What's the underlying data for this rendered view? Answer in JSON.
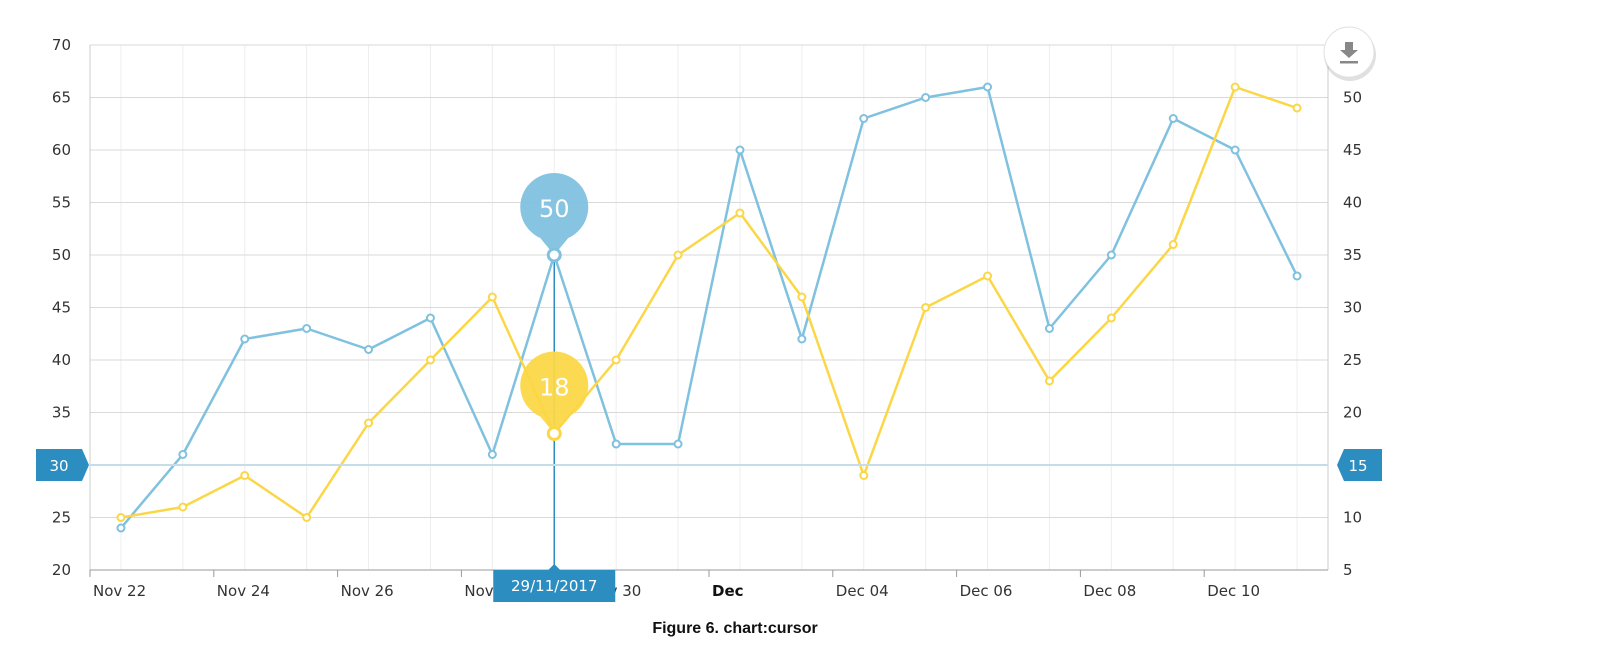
{
  "caption": "Figure 6. chart:cursor",
  "export_button": {
    "icon": "download-icon"
  },
  "colors": {
    "series1": "#7fc1df",
    "series2": "#fbd747",
    "cursor": "#2b8dc0",
    "grid": "#d9d9d9",
    "minor_grid": "#eeeeee"
  },
  "chart_data": {
    "type": "line",
    "x": [
      "2017-11-22",
      "2017-11-23",
      "2017-11-24",
      "2017-11-25",
      "2017-11-26",
      "2017-11-27",
      "2017-11-28",
      "2017-11-29",
      "2017-11-30",
      "2017-12-01",
      "2017-12-02",
      "2017-12-03",
      "2017-12-04",
      "2017-12-05",
      "2017-12-06",
      "2017-12-07",
      "2017-12-08",
      "2017-12-09",
      "2017-12-10",
      "2017-12-11"
    ],
    "x_ticks": [
      {
        "date": "2017-11-22",
        "label": "Nov 22",
        "bold": false
      },
      {
        "date": "2017-11-24",
        "label": "Nov 24",
        "bold": false
      },
      {
        "date": "2017-11-26",
        "label": "Nov 26",
        "bold": false
      },
      {
        "date": "2017-11-28",
        "label": "Nov 28",
        "bold": false
      },
      {
        "date": "2017-11-30",
        "label": "Nov 30",
        "bold": false
      },
      {
        "date": "2017-12-02",
        "label": "Dec",
        "bold": true
      },
      {
        "date": "2017-12-04",
        "label": "Dec 04",
        "bold": false
      },
      {
        "date": "2017-12-06",
        "label": "Dec 06",
        "bold": false
      },
      {
        "date": "2017-12-08",
        "label": "Dec 08",
        "bold": false
      },
      {
        "date": "2017-12-10",
        "label": "Dec 10",
        "bold": false
      }
    ],
    "series": [
      {
        "axis": "left",
        "color": "#7fc1df",
        "values": [
          24,
          31,
          42,
          43,
          41,
          44,
          31,
          50,
          32,
          32,
          60,
          42,
          63,
          65,
          66,
          43,
          50,
          63,
          60,
          48
        ]
      },
      {
        "axis": "right",
        "color": "#fbd747",
        "values": [
          10,
          11,
          14,
          10,
          19,
          25,
          31,
          18,
          25,
          35,
          39,
          31,
          14,
          30,
          33,
          23,
          29,
          36,
          51,
          49
        ]
      }
    ],
    "left_axis": {
      "min": 20,
      "max": 70,
      "step": 5
    },
    "right_axis": {
      "min": 5,
      "max": 50,
      "step": 5,
      "top": 55
    },
    "grid": true,
    "cursor": {
      "date_label": "29/11/2017",
      "index": 7,
      "left_value_label": "30",
      "left_value": 30,
      "right_value_label": "15",
      "right_value": 15,
      "balloons": [
        {
          "series": 0,
          "text": "50"
        },
        {
          "series": 1,
          "text": "18"
        }
      ]
    }
  }
}
